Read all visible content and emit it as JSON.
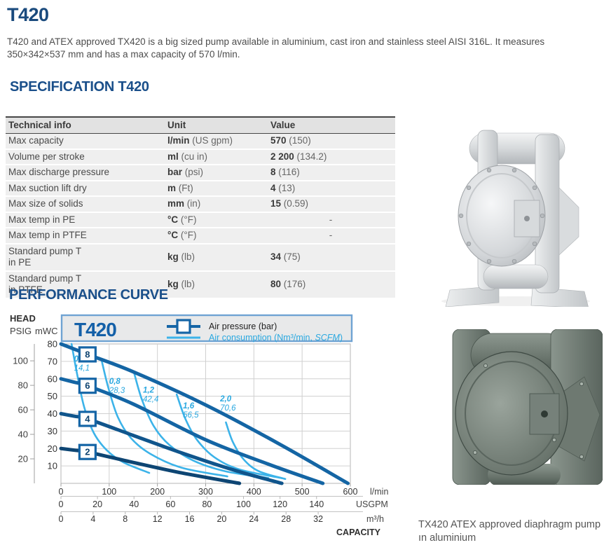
{
  "page": {
    "title": "T420",
    "intro": "T420 and ATEX approved TX420 is a big sized pump available in aluminium, cast iron and stainless steel AISI 316L. It measures 350×342×537 mm and has a max capacity of 570 l/min.",
    "spec_heading": "SPECIFICATION T420",
    "curve_heading": "PERFORMANCE CURVE"
  },
  "colors": {
    "title_blue": "#1a4a7d",
    "heading_blue": "#1a4f8a",
    "chart_title_blue": "#1460a8",
    "pressure_blue": "#1465a4",
    "consumption_blue": "#3cb3e9",
    "consumption_label_blue": "#29a8e0",
    "grid_gray": "#d0d0d0",
    "header_box_bg": "#e8e9ea",
    "header_box_border": "#6fa3d3"
  },
  "spec_table": {
    "headers": [
      "Technical info",
      "Unit",
      "Value"
    ],
    "rows": [
      {
        "label": "Max capacity",
        "unit_bold": "l/min",
        "unit_rest": " (US gpm)",
        "value_bold": "570",
        "value_rest": " (150)"
      },
      {
        "label": "Volume per stroke",
        "unit_bold": "ml",
        "unit_rest": " (cu in)",
        "value_bold": "2 200",
        "value_rest": " (134.2)"
      },
      {
        "label": "Max discharge pressure",
        "unit_bold": "bar",
        "unit_rest": " (psi)",
        "value_bold": "8",
        "value_rest": " (116)"
      },
      {
        "label": "Max suction lift dry",
        "unit_bold": "m",
        "unit_rest": " (Ft)",
        "value_bold": "4",
        "value_rest": " (13)"
      },
      {
        "label": "Max size of solids",
        "unit_bold": "mm",
        "unit_rest": " (in)",
        "value_bold": "15",
        "value_rest": " (0.59)"
      },
      {
        "label": "Max temp in PE",
        "unit_bold": "°C",
        "unit_rest": " (°F)",
        "value_bold": "",
        "value_rest": "-",
        "center": true
      },
      {
        "label": "Max temp in PTFE",
        "unit_bold": "°C",
        "unit_rest": " (°F)",
        "value_bold": "",
        "value_rest": "-",
        "center": true
      },
      {
        "label": "Standard pump T",
        "label2": "in PE",
        "unit_bold": "kg",
        "unit_rest": " (lb)",
        "value_bold": "34",
        "value_rest": " (75)"
      },
      {
        "label": "Standard pump T",
        "label2": "in PTFE",
        "unit_bold": "kg",
        "unit_rest": " (lb)",
        "value_bold": "80",
        "value_rest": " (176)"
      }
    ]
  },
  "chart_data": {
    "type": "line",
    "title": "T420",
    "head_label": "HEAD",
    "y_unit_left": "PSIG",
    "y_unit_right": "mWC",
    "legend": [
      {
        "name": "air-pressure",
        "label": "Air pressure (bar)"
      },
      {
        "name": "air-consumption",
        "label_pre": "Air consumption (Nm³/min, ",
        "label_italic": "SCFM",
        "label_post": ")"
      }
    ],
    "y_axis_mwc": {
      "ticks": [
        80,
        70,
        60,
        50,
        40,
        30,
        20,
        10
      ],
      "range": [
        0,
        80
      ]
    },
    "y_axis_psig": {
      "ticks": [
        100,
        80,
        60,
        40,
        20
      ],
      "mwc_per_psig": 0.70307
    },
    "x_axis_lmin": {
      "ticks": [
        0,
        100,
        200,
        300,
        400,
        500,
        600
      ],
      "unit": "l/min",
      "range": [
        0,
        600
      ]
    },
    "x_axis_usgpm": {
      "ticks": [
        0,
        20,
        40,
        60,
        80,
        100,
        120,
        140
      ],
      "unit": "USGPM",
      "lmin_per_unit": 3.7854
    },
    "x_axis_m3h": {
      "ticks": [
        0,
        4,
        8,
        12,
        16,
        20,
        24,
        28,
        32
      ],
      "unit": "m³/h",
      "lmin_per_unit": 16.6667
    },
    "capacity_label": "CAPACITY",
    "grid": true,
    "pressure_series": [
      {
        "bar": "8",
        "color": "#1465a4",
        "marker_at": [
          55,
          74
        ],
        "points": [
          [
            0,
            80
          ],
          [
            28,
            77
          ],
          [
            55,
            74
          ],
          [
            150,
            64
          ],
          [
            300,
            45
          ],
          [
            450,
            23
          ],
          [
            595,
            0
          ]
        ]
      },
      {
        "bar": "6",
        "color": "#1465a4",
        "marker_at": [
          55,
          56
        ],
        "points": [
          [
            0,
            60
          ],
          [
            28,
            58
          ],
          [
            55,
            56
          ],
          [
            150,
            45.5
          ],
          [
            300,
            25
          ],
          [
            430,
            11
          ],
          [
            543,
            0
          ]
        ]
      },
      {
        "bar": "4",
        "color": "#10558c",
        "marker_at": [
          55,
          37
        ],
        "points": [
          [
            0,
            40
          ],
          [
            28,
            38.5
          ],
          [
            55,
            37
          ],
          [
            150,
            27.5
          ],
          [
            250,
            17.5
          ],
          [
            360,
            7.5
          ],
          [
            458,
            0
          ]
        ]
      },
      {
        "bar": "2",
        "color": "#0d4573",
        "marker_at": [
          55,
          18
        ],
        "points": [
          [
            0,
            20
          ],
          [
            28,
            19
          ],
          [
            55,
            18
          ],
          [
            150,
            12
          ],
          [
            250,
            6
          ],
          [
            370,
            0
          ]
        ]
      }
    ],
    "consumption_series": [
      {
        "nm3": "0,4",
        "scfm": "14,1",
        "label_at": [
          27,
          70
        ],
        "points": [
          [
            22,
            80
          ],
          [
            34,
            62
          ],
          [
            48,
            44
          ],
          [
            68,
            29
          ],
          [
            95,
            19
          ],
          [
            130,
            12
          ],
          [
            183,
            6
          ]
        ]
      },
      {
        "nm3": "0,8",
        "scfm": "28,3",
        "label_at": [
          100,
          57
        ],
        "points": [
          [
            84,
            71
          ],
          [
            98,
            55
          ],
          [
            118,
            38
          ],
          [
            145,
            26
          ],
          [
            185,
            17
          ],
          [
            250,
            9
          ],
          [
            345,
            4
          ]
        ]
      },
      {
        "nm3": "1,2",
        "scfm": "42,4",
        "label_at": [
          170,
          52
        ],
        "points": [
          [
            152,
            63
          ],
          [
            168,
            48
          ],
          [
            192,
            33
          ],
          [
            225,
            22
          ],
          [
            275,
            13
          ],
          [
            340,
            7
          ],
          [
            430,
            3
          ]
        ]
      },
      {
        "nm3": "1,6",
        "scfm": "56,5",
        "label_at": [
          253,
          43
        ],
        "points": [
          [
            240,
            51
          ],
          [
            258,
            37
          ],
          [
            282,
            25
          ],
          [
            318,
            15
          ],
          [
            370,
            8
          ],
          [
            458,
            3
          ]
        ]
      },
      {
        "nm3": "2,0",
        "scfm": "70,6",
        "label_at": [
          330,
          47
        ],
        "points": [
          [
            342,
            35
          ],
          [
            356,
            24
          ],
          [
            378,
            14
          ],
          [
            410,
            7
          ],
          [
            465,
            2.5
          ]
        ]
      }
    ]
  },
  "caption": {
    "text": "TX420 ATEX approved diaphragm pump ın aluminium"
  }
}
